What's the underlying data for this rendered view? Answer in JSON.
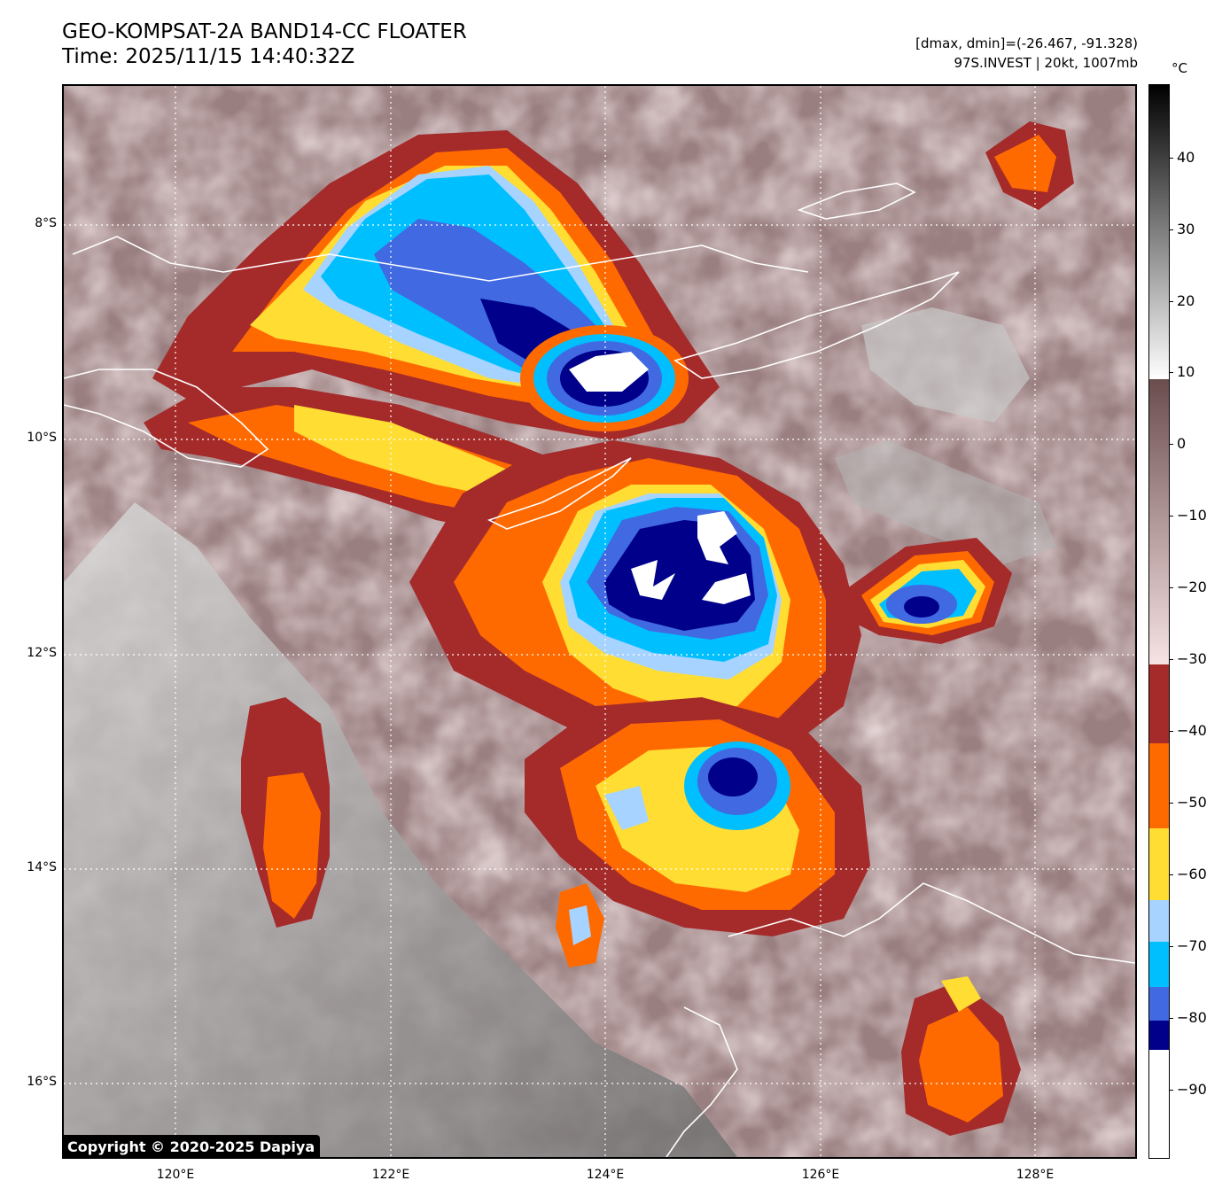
{
  "title": {
    "line1": "GEO-KOMPSAT-2A BAND14-CC FLOATER",
    "line2": "Time: 2025/11/15 14:40:32Z"
  },
  "meta": {
    "range": "[dmax, dmin]=(-26.467, -91.328)",
    "storm": "97S.INVEST | 20kt, 1007mb"
  },
  "lat_labels": [
    "8°S",
    "10°S",
    "12°S",
    "14°S",
    "16°S"
  ],
  "lon_labels": [
    "120°E",
    "122°E",
    "124°E",
    "126°E",
    "128°E"
  ],
  "copyright": "Copyright © 2020-2025 Dapiya",
  "colorbar": {
    "unit": "°C",
    "ticks": [
      "40",
      "30",
      "20",
      "10",
      "0",
      "−10",
      "−20",
      "−30",
      "−40",
      "−50",
      "−60",
      "−70",
      "−80",
      "−90"
    ],
    "colors": {
      "warm_top": "#000000",
      "warm_mid": "#ffffff",
      "mild_top": "#6b4d4e",
      "mild_bottom": "#f7e3e4",
      "c_40": "#a52a2a",
      "c_50": "#ff6a00",
      "c_60": "#ffdd33",
      "c_70": "#a6d3ff",
      "c_75": "#00bfff",
      "c_80": "#4169e1",
      "c_85": "#00008b",
      "coldest": "#ffffff"
    }
  }
}
